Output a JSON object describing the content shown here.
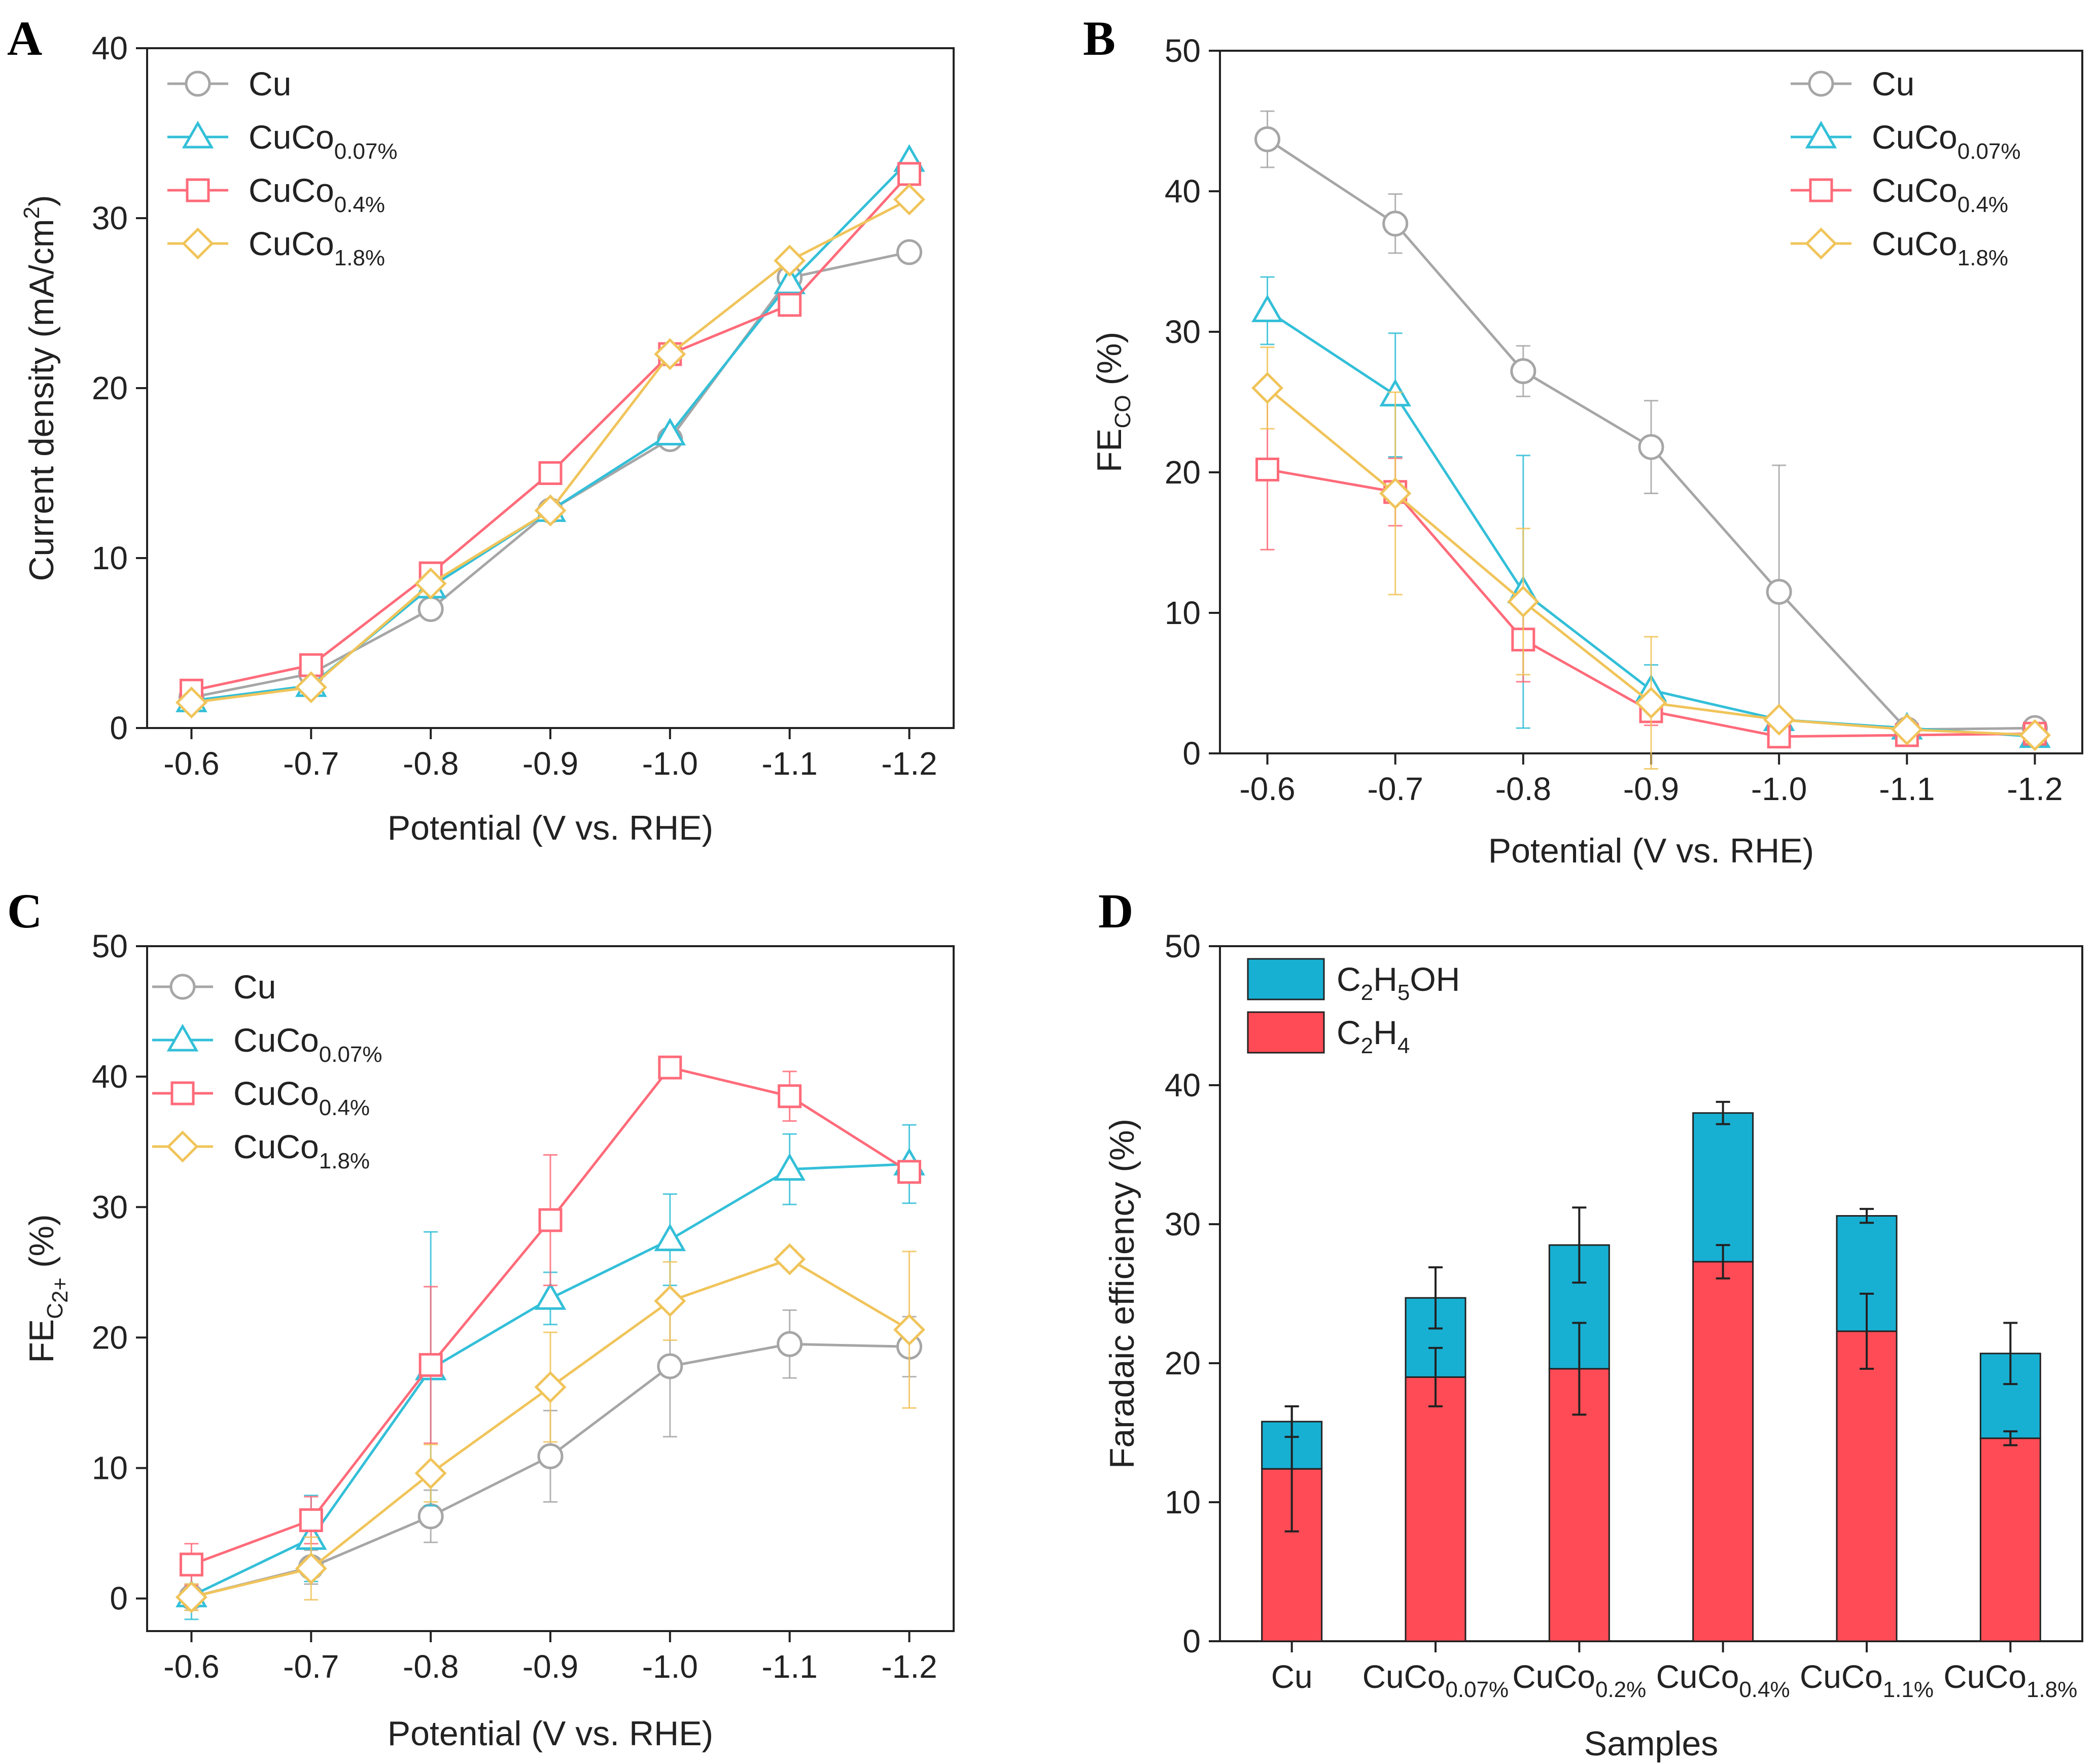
{
  "figure": {
    "colors": {
      "Cu": "#a6a6a6",
      "CuCo0.07": "#33bfd8",
      "CuCo0.4": "#ff6b7a",
      "CuCo1.8": "#f0c45a",
      "C2H5OH": "#17b0d3",
      "C2H4": "#ff4b55"
    }
  },
  "chart_data": [
    {
      "panel": "A",
      "type": "line",
      "xlabel": "Potential (V vs. RHE)",
      "ylabel": "Current density (mA/cm",
      "ylabel_sup": "2",
      "ylabel_end": ")",
      "x": [
        "-0.6",
        "-0.7",
        "-0.8",
        "-0.9",
        "-1.0",
        "-1.1",
        "-1.2"
      ],
      "ylim": [
        0,
        40
      ],
      "yticks": [
        "0",
        "10",
        "20",
        "30",
        "40"
      ],
      "legend_position": "top-left",
      "series": [
        {
          "key": "Cu",
          "name": "Cu",
          "sub": "",
          "marker": "circle",
          "values": [
            1.8,
            3.2,
            7.0,
            12.8,
            17.0,
            26.5,
            28.0
          ]
        },
        {
          "key": "CuCo0.07",
          "name": "CuCo",
          "sub": "0.07%",
          "marker": "triangle",
          "values": [
            1.6,
            2.5,
            8.3,
            12.8,
            17.3,
            26.2,
            33.4
          ]
        },
        {
          "key": "CuCo0.4",
          "name": "CuCo",
          "sub": "0.4%",
          "marker": "square",
          "values": [
            2.2,
            3.7,
            9.1,
            15.0,
            22.0,
            24.9,
            32.6
          ]
        },
        {
          "key": "CuCo1.8",
          "name": "CuCo",
          "sub": "1.8%",
          "marker": "diamond",
          "values": [
            1.5,
            2.4,
            8.5,
            12.8,
            22.0,
            27.5,
            31.1
          ]
        }
      ]
    },
    {
      "panel": "B",
      "type": "line",
      "xlabel": "Potential (V vs. RHE)",
      "ylabel": "FE",
      "ylabel_sub": "CO",
      "ylabel_end": " (%)",
      "x": [
        "-0.6",
        "-0.7",
        "-0.8",
        "-0.9",
        "-1.0",
        "-1.1",
        "-1.2"
      ],
      "ylim": [
        0,
        50
      ],
      "yticks": [
        "0",
        "10",
        "20",
        "30",
        "40",
        "50"
      ],
      "legend_position": "top-right",
      "series": [
        {
          "key": "Cu",
          "name": "Cu",
          "sub": "",
          "marker": "circle",
          "values": [
            43.7,
            37.7,
            27.2,
            21.8,
            11.5,
            1.7,
            1.8
          ],
          "errors": [
            2.0,
            2.1,
            1.8,
            3.3,
            9.0,
            0.5,
            0.5
          ]
        },
        {
          "key": "CuCo0.07",
          "name": "CuCo",
          "sub": "0.07%",
          "marker": "triangle",
          "values": [
            31.5,
            25.5,
            11.5,
            4.5,
            2.4,
            1.8,
            1.2
          ],
          "errors": [
            2.4,
            4.4,
            9.7,
            1.8,
            0.5,
            0.4,
            0.4
          ]
        },
        {
          "key": "CuCo0.4",
          "name": "CuCo",
          "sub": "0.4%",
          "marker": "square",
          "values": [
            20.2,
            18.6,
            8.1,
            3.0,
            1.2,
            1.3,
            1.4
          ],
          "errors": [
            5.7,
            2.4,
            3.0,
            1.0,
            0.4,
            0.3,
            0.3
          ]
        },
        {
          "key": "CuCo1.8",
          "name": "CuCo",
          "sub": "1.8%",
          "marker": "diamond",
          "values": [
            26.0,
            18.5,
            10.8,
            3.6,
            2.4,
            1.7,
            1.3
          ],
          "errors": [
            2.9,
            7.2,
            5.2,
            4.7,
            0.4,
            0.3,
            0.3
          ]
        }
      ]
    },
    {
      "panel": "C",
      "type": "line",
      "xlabel": "Potential (V vs. RHE)",
      "ylabel": "FE",
      "ylabel_sub": "C",
      "ylabel_subsub": "2+",
      "ylabel_end": "  (%)",
      "x": [
        "-0.6",
        "-0.7",
        "-0.8",
        "-0.9",
        "-1.0",
        "-1.1",
        "-1.2"
      ],
      "ylim": [
        -2.5,
        50
      ],
      "yticks": [
        "0",
        "10",
        "20",
        "30",
        "40",
        "50"
      ],
      "legend_position": "top-left",
      "series": [
        {
          "key": "Cu",
          "name": "Cu",
          "sub": "",
          "marker": "circle",
          "values": [
            0.1,
            2.4,
            6.3,
            10.9,
            17.8,
            19.5,
            19.3
          ],
          "errors": [
            1.0,
            1.3,
            2.0,
            3.5,
            5.4,
            2.6,
            2.3
          ]
        },
        {
          "key": "CuCo0.07",
          "name": "CuCo",
          "sub": "0.07%",
          "marker": "triangle",
          "values": [
            0.2,
            4.6,
            17.6,
            23.0,
            27.5,
            32.9,
            33.3
          ],
          "errors": [
            1.8,
            3.3,
            10.5,
            2.0,
            3.5,
            2.7,
            3.0
          ]
        },
        {
          "key": "CuCo0.4",
          "name": "CuCo",
          "sub": "0.4%",
          "marker": "square",
          "values": [
            2.6,
            6.0,
            17.9,
            29.0,
            40.7,
            38.5,
            32.7
          ],
          "errors": [
            1.6,
            1.8,
            6.0,
            5.0,
            0.5,
            1.9,
            0.8
          ]
        },
        {
          "key": "CuCo1.8",
          "name": "CuCo",
          "sub": "1.8%",
          "marker": "diamond",
          "values": [
            0.1,
            2.3,
            9.6,
            16.2,
            22.8,
            26.0,
            20.6
          ],
          "errors": [
            1.0,
            2.4,
            2.2,
            4.2,
            3.0,
            0.7,
            6.0
          ]
        }
      ]
    },
    {
      "panel": "D",
      "type": "bar",
      "stacked": true,
      "xlabel": "Samples",
      "ylabel": "Faradaic efficiency (%)",
      "ylim": [
        0,
        50
      ],
      "yticks": [
        "0",
        "10",
        "20",
        "30",
        "40",
        "50"
      ],
      "legend_position": "top-left",
      "categories": [
        {
          "name": "Cu",
          "sub": ""
        },
        {
          "name": "CuCo",
          "sub": "0.07%"
        },
        {
          "name": "CuCo",
          "sub": "0.2%"
        },
        {
          "name": "CuCo",
          "sub": "0.4%"
        },
        {
          "name": "CuCo",
          "sub": "1.1%"
        },
        {
          "name": "CuCo",
          "sub": "1.8%"
        }
      ],
      "series": [
        {
          "key": "C2H4",
          "legend": [
            [
              "C",
              ""
            ],
            [
              "2",
              "sub"
            ],
            [
              "H",
              ""
            ],
            [
              "4",
              "sub"
            ]
          ],
          "values": [
            12.4,
            19.0,
            19.6,
            27.3,
            22.3,
            14.6
          ],
          "errors": [
            4.5,
            2.1,
            3.3,
            1.2,
            2.7,
            0.5
          ]
        },
        {
          "key": "C2H5OH",
          "legend": [
            [
              "C",
              ""
            ],
            [
              "2",
              "sub"
            ],
            [
              "H",
              ""
            ],
            [
              "5",
              "sub"
            ],
            [
              "OH",
              ""
            ]
          ],
          "values": [
            3.4,
            5.7,
            8.9,
            10.7,
            8.3,
            6.1
          ],
          "errors": [
            1.1,
            2.2,
            2.7,
            0.8,
            0.5,
            2.2
          ]
        }
      ]
    }
  ]
}
